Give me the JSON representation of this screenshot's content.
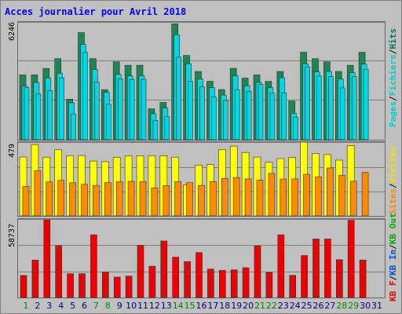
{
  "chart_data": {
    "type": "bar",
    "title": "Acces journalier pour Avril 2018",
    "categories": [
      "1",
      "2",
      "3",
      "4",
      "5",
      "6",
      "7",
      "8",
      "9",
      "10",
      "11",
      "12",
      "13",
      "14",
      "15",
      "16",
      "17",
      "18",
      "19",
      "20",
      "21",
      "22",
      "23",
      "24",
      "25",
      "26",
      "27",
      "28",
      "29",
      "30",
      "31"
    ],
    "weekend_days": [
      1,
      7,
      8,
      14,
      15,
      21,
      22,
      28,
      29
    ],
    "panels": [
      {
        "id": "hits",
        "max_label": "6246",
        "ymax": 6246,
        "side_label": {
          "pages": "Pages",
          "fichiers": "Fichiers",
          "hits": "Hits"
        },
        "series": [
          {
            "name": "Hits",
            "values": [
              3440,
              3440,
              3780,
              4300,
              2150,
              5680,
              4300,
              2660,
              4130,
              3950,
              3950,
              1640,
              1980,
              6150,
              4470,
              3620,
              3100,
              2660,
              3790,
              3270,
              3440,
              3100,
              3620,
              2050,
              4640,
              4300,
              4130,
              3620,
              3950,
              4640,
              0
            ]
          },
          {
            "name": "Fichiers",
            "values": [
              2840,
              3040,
              3280,
              3530,
              1960,
              5060,
              3720,
              2510,
              3470,
              3390,
              3390,
              1380,
              1680,
              5570,
              4030,
              3220,
              2760,
              2370,
              3390,
              2870,
              3040,
              2760,
              3290,
              1400,
              4030,
              3600,
              3620,
              3220,
              3560,
              4010,
              0
            ]
          },
          {
            "name": "Pages",
            "values": [
              2760,
              2420,
              2600,
              3280,
              1370,
              4630,
              3050,
              1880,
              3230,
              3200,
              3200,
              1030,
              1230,
              4380,
              3100,
              2810,
              2270,
              2080,
              2660,
              2570,
              2930,
              2470,
              2490,
              1200,
              3870,
              3380,
              3350,
              2750,
              3360,
              3740,
              0
            ]
          }
        ]
      },
      {
        "id": "visits",
        "max_label": "479",
        "ymax": 479,
        "side_label": {
          "sites": "Sites",
          "visites": "Visites"
        },
        "series": [
          {
            "name": "Visites",
            "values": [
              382,
              463,
              381,
              429,
              391,
              392,
              356,
              352,
              380,
              390,
              391,
              391,
              390,
              381,
              202,
              330,
              333,
              431,
              453,
              412,
              382,
              348,
              372,
              379,
              479,
              404,
              398,
              362,
              457,
              0,
              0
            ]
          },
          {
            "name": "Sites",
            "values": [
              191,
              293,
              221,
              231,
              215,
              205,
              198,
              216,
              222,
              224,
              223,
              182,
              196,
              223,
              216,
              198,
              222,
              243,
              249,
              240,
              233,
              276,
              239,
              240,
              270,
              253,
              311,
              264,
              225,
              282,
              0
            ]
          }
        ]
      },
      {
        "id": "kb",
        "max_label": "58737",
        "ymax": 58737,
        "side_label": {
          "kb_out": "KB Out",
          "kb_in": "KB In",
          "kb_f": "KB F"
        },
        "series": [
          {
            "name": "KB F",
            "values": [
              16500,
              28000,
              58100,
              38800,
              17800,
              17800,
              46900,
              19000,
              15300,
              16000,
              39100,
              23400,
              42300,
              30200,
              26900,
              33600,
              21300,
              20300,
              20700,
              22300,
              38600,
              18800,
              46900,
              16600,
              31400,
              43800,
              43800,
              28300,
              57800,
              28100,
              0
            ]
          }
        ]
      }
    ],
    "colors": {
      "hits": "#1e8650",
      "fichiers": "#00d7e3",
      "pages": "#00d7e3",
      "visites": "#ffff00",
      "sites": "#ff8c00",
      "kb": "#ee0000",
      "title": "#0000ff",
      "pages_label": "#00cccc",
      "hits_label": "#007060",
      "visites_label": "#ffdd00",
      "sites_label": "#ff8800",
      "kb_out_label": "#00aa00",
      "kb_in_label": "#0050dd",
      "kb_f_label": "#dd0000",
      "weekend_day": "#008800",
      "weekday": "#000080",
      "grid": "#808080",
      "panel_bg": "#c0c0c0"
    },
    "grid": true,
    "legend_placement": "right-vertical"
  }
}
